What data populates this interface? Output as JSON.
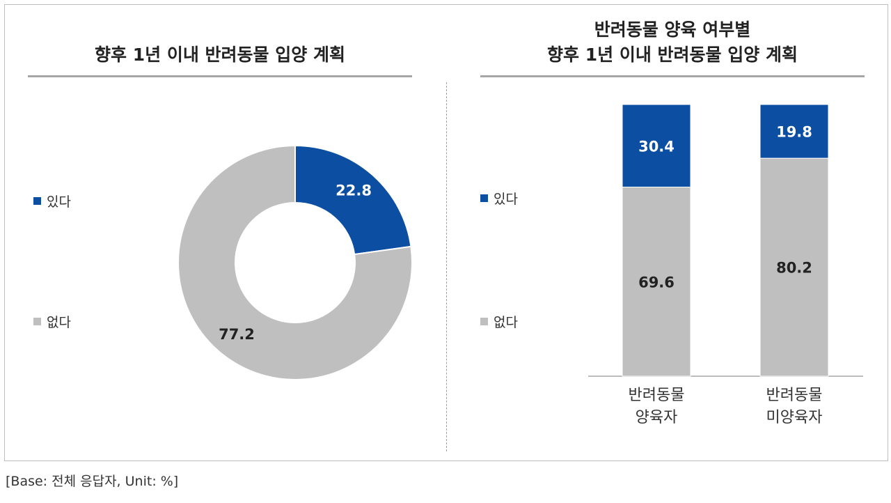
{
  "footer": "[Base: 전체 응답자, Unit: %]",
  "colors": {
    "yes": "#0b4ea2",
    "no": "#bfbfbf"
  },
  "chart_data": [
    {
      "type": "pie",
      "title": "향후 1년 이내 반려동물 입양 계획",
      "legend": [
        "있다",
        "없다"
      ],
      "legend_position": "left",
      "labels": [
        "있다",
        "없다"
      ],
      "values": [
        22.8,
        77.2
      ],
      "value_labels": [
        "22.8",
        "77.2"
      ]
    },
    {
      "type": "bar",
      "stacked": true,
      "title_lines": [
        "반려동물 양육 여부별",
        "향후 1년 이내 반려동물 입양 계획"
      ],
      "categories": [
        [
          "반려동물",
          "양육자"
        ],
        [
          "반려동물",
          "미양육자"
        ]
      ],
      "legend": [
        "있다",
        "없다"
      ],
      "legend_position": "left",
      "ylim": [
        0,
        100
      ],
      "series": [
        {
          "name": "있다",
          "values": [
            30.4,
            19.8
          ],
          "value_labels": [
            "30.4",
            "19.8"
          ]
        },
        {
          "name": "없다",
          "values": [
            69.6,
            80.2
          ],
          "value_labels": [
            "69.6",
            "80.2"
          ]
        }
      ]
    }
  ]
}
